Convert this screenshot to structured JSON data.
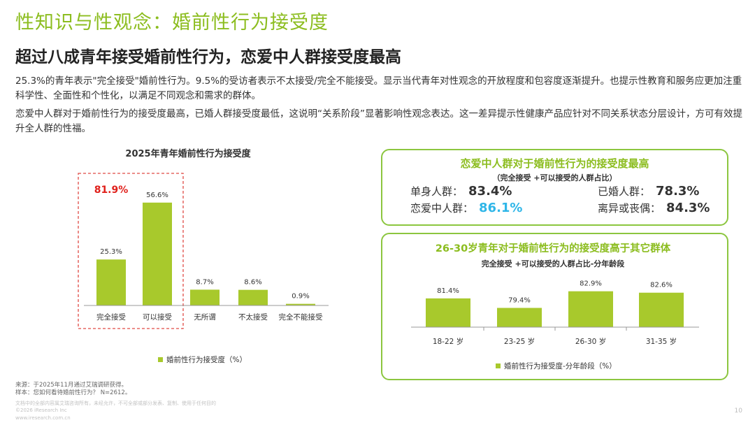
{
  "header": {
    "title": "性知识与性观念：婚前性行为接受度",
    "subtitle": "超过八成青年接受婚前性行为，恋爱中人群接受度最高",
    "para1": "25.3%的青年表示\"完全接受\"婚前性行为。9.5%的受访者表示不太接受/完全不能接受。显示当代青年对性观念的开放程度和包容度逐渐提升。也提示性教育和服务应更加注重科学性、全面性和个性化，以满足不同观念和需求的群体。",
    "para2": "恋爱中人群对于婚前性行为的接受度最高，已婚人群接受度最低，这说明“关系阶段”显著影响性观念表达。这一差异提示性健康产品应针对不同关系状态分层设计，方可有效提升全人群的性福。"
  },
  "colors": {
    "bar": "#a8c92c",
    "accent": "#8cbd1f",
    "highlight_red": "#e0201b",
    "highlight_blue": "#2fb6e8",
    "dash": "#e04a45"
  },
  "chart_data": [
    {
      "type": "bar",
      "title": "2025年青年婚前性行为接受度",
      "categories": [
        "完全接受",
        "可以接受",
        "无所谓",
        "不太接受",
        "完全不能接受"
      ],
      "series": [
        {
          "name": "婚前性行为接受度（%）",
          "values": [
            25.3,
            56.6,
            8.7,
            8.6,
            0.9
          ]
        }
      ],
      "value_labels": [
        "25.3%",
        "56.6%",
        "8.7%",
        "8.6%",
        "0.9%"
      ],
      "group_total_label": "81.9%",
      "legend": "bottom",
      "grid": false
    },
    {
      "type": "bar",
      "title": "26-30岁青年对于婚前性行为的接受度高于其它群体",
      "subtitle": "完全接受 +可以接受的人群占比-分年龄段",
      "categories": [
        "18-22 岁",
        "23-25 岁",
        "26-30 岁",
        "31-35 岁"
      ],
      "series": [
        {
          "name": "婚前性行为接受度-分年龄段（%）",
          "values": [
            81.4,
            79.4,
            82.9,
            82.6
          ]
        }
      ],
      "value_labels": [
        "81.4%",
        "79.4%",
        "82.9%",
        "82.6%"
      ],
      "legend": "bottom",
      "grid": false
    }
  ],
  "relationship_box": {
    "title": "恋爱中人群对于婚前性行为的接受度最高",
    "subtitle": "（完全接受 +可以接受的人群占比）",
    "stats": [
      {
        "label": "单身人群：",
        "value": "83.4%"
      },
      {
        "label": "已婚人群：",
        "value": "78.3%"
      },
      {
        "label": "恋爱中人群：",
        "value": "86.1%"
      },
      {
        "label": "离异或丧偶：",
        "value": "84.3%"
      }
    ]
  },
  "footer": {
    "source": "来源：于2025年11月通过艾瑞调研获得。",
    "sample": "样本：您如何看待婚前性行为？ N=2612。",
    "copyright1": "文档中的全部内容属艾瑞咨询所有，未经允许，不可全部或部分发表、复制、使用于任何目的",
    "copyright2": "©2026 iResearch Inc",
    "copyright3": "www.iresearch.com.cn",
    "page": "10"
  }
}
